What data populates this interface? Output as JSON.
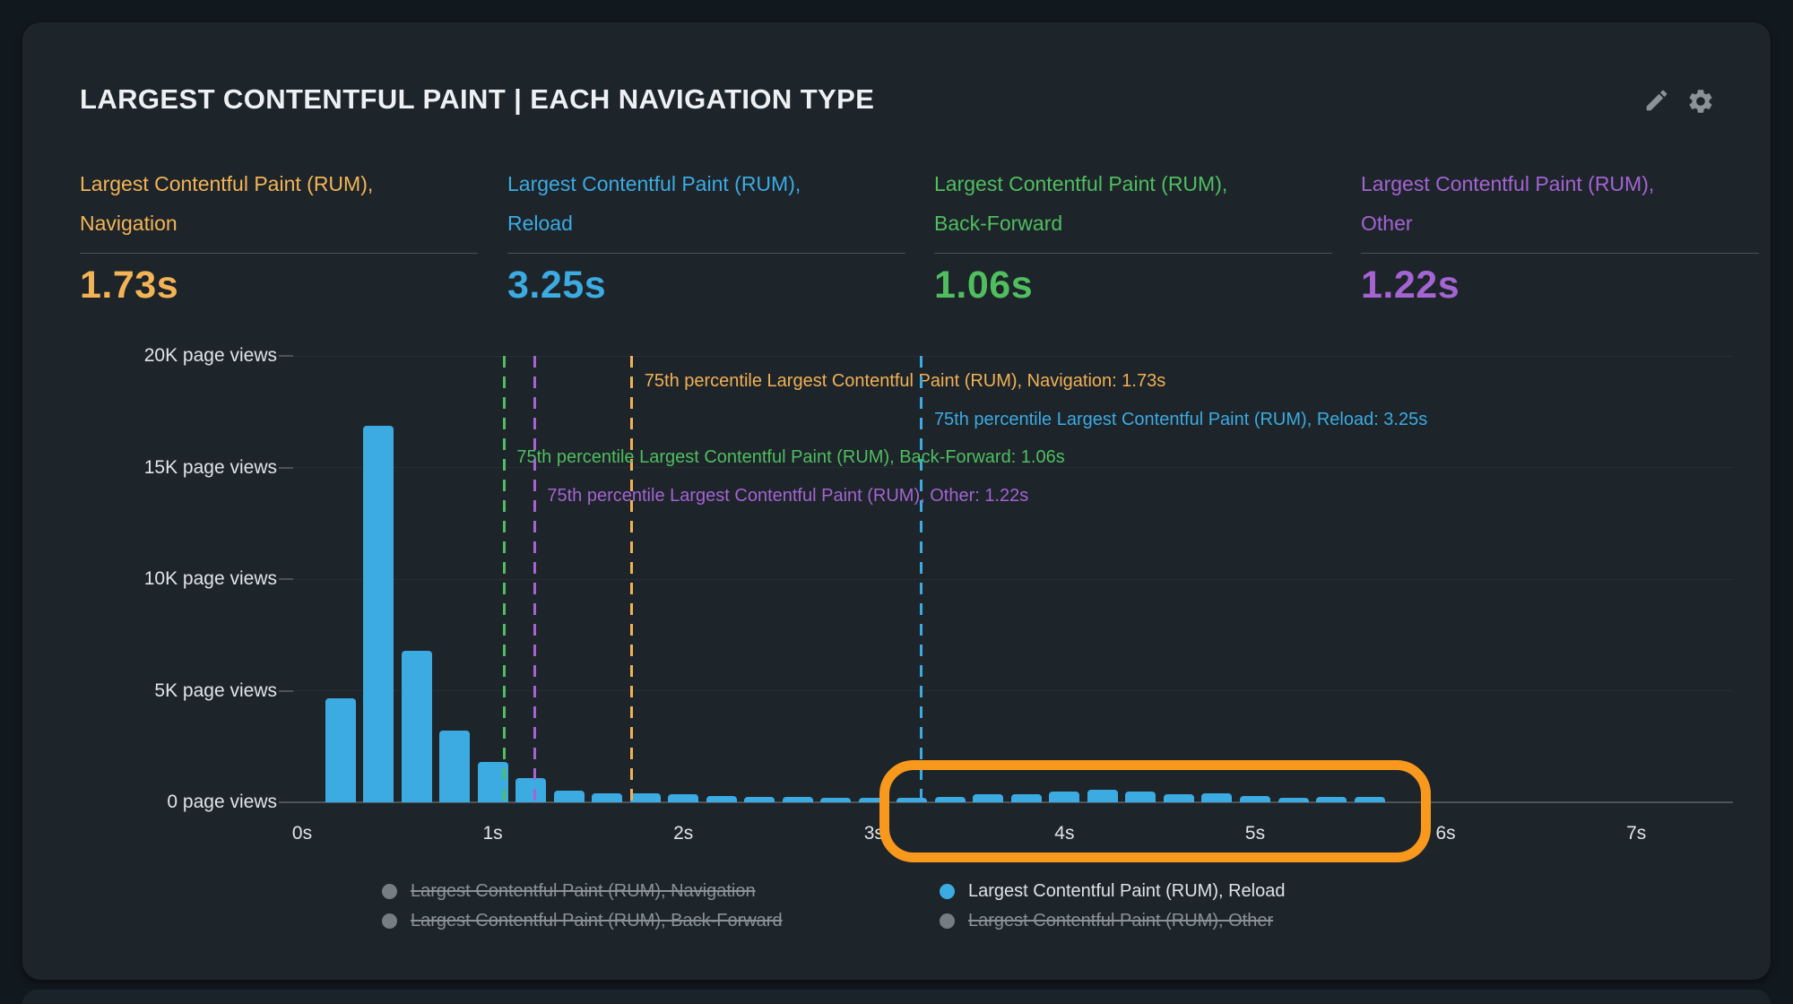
{
  "header": {
    "title": "LARGEST CONTENTFUL PAINT | EACH NAVIGATION TYPE",
    "icons": [
      {
        "name": "edit-pencil-icon",
        "color": "#8b9399"
      },
      {
        "name": "settings-gear-icon",
        "color": "#8b9399"
      }
    ]
  },
  "kpis": [
    {
      "label_line1": "Largest Contentful Paint (RUM),",
      "label_line2": "Navigation",
      "value": "1.73s",
      "color": "#f4b455"
    },
    {
      "label_line1": "Largest Contentful Paint (RUM),",
      "label_line2": "Reload",
      "value": "3.25s",
      "color": "#3cabe2"
    },
    {
      "label_line1": "Largest Contentful Paint (RUM),",
      "label_line2": "Back-Forward",
      "value": "1.06s",
      "color": "#50be5f"
    },
    {
      "label_line1": "Largest Contentful Paint (RUM),",
      "label_line2": "Other",
      "value": "1.22s",
      "color": "#a464d2"
    }
  ],
  "chart_data": {
    "type": "bar",
    "series_name": "Largest Contentful Paint (RUM), Reload",
    "bar_color": "#3cabe2",
    "bin_width_s": 0.2,
    "x": [
      0.2,
      0.4,
      0.6,
      0.8,
      1.0,
      1.2,
      1.4,
      1.6,
      1.8,
      2.0,
      2.2,
      2.4,
      2.6,
      2.8,
      3.0,
      3.2,
      3.4,
      3.6,
      3.8,
      4.0,
      4.2,
      4.4,
      4.6,
      4.8,
      5.0,
      5.2,
      5.4,
      5.6
    ],
    "values": [
      4660,
      16850,
      6800,
      3210,
      1810,
      1090,
      520,
      400,
      400,
      360,
      280,
      240,
      240,
      200,
      200,
      200,
      240,
      360,
      360,
      480,
      560,
      480,
      360,
      400,
      280,
      200,
      240,
      240
    ],
    "ylim": [
      0,
      20000
    ],
    "xlim_s": [
      0,
      7.5
    ],
    "y_ticks": [
      {
        "label": "20K page views",
        "value": 20000
      },
      {
        "label": "15K page views",
        "value": 15000
      },
      {
        "label": "10K page views",
        "value": 10000
      },
      {
        "label": "5K page views",
        "value": 5000
      },
      {
        "label": "0 page views",
        "value": 0
      }
    ],
    "x_ticks": [
      {
        "label": "0s",
        "value": 0
      },
      {
        "label": "1s",
        "value": 1
      },
      {
        "label": "2s",
        "value": 2
      },
      {
        "label": "3s",
        "value": 3
      },
      {
        "label": "4s",
        "value": 4
      },
      {
        "label": "5s",
        "value": 5
      },
      {
        "label": "6s",
        "value": 6
      },
      {
        "label": "7s",
        "value": 7
      }
    ],
    "percentile_markers": [
      {
        "name": "navigation",
        "value_s": 1.73,
        "color": "#f2b155",
        "annotation": "75th percentile Largest Contentful Paint (RUM), Navigation: 1.73s"
      },
      {
        "name": "reload",
        "value_s": 3.25,
        "color": "#3cabe2",
        "annotation": "75th percentile Largest Contentful Paint (RUM), Reload: 3.25s"
      },
      {
        "name": "back-forward",
        "value_s": 1.06,
        "color": "#50be5f",
        "annotation": "75th percentile Largest Contentful Paint (RUM), Back-Forward: 1.06s"
      },
      {
        "name": "other",
        "value_s": 1.22,
        "color": "#a464d2",
        "annotation": "75th percentile Largest Contentful Paint (RUM), Other: 1.22s"
      }
    ],
    "highlight_region": {
      "from_s": 3.08,
      "to_s": 5.87,
      "color": "#f8991d"
    },
    "grid": true,
    "legend_position": "bottom"
  },
  "legend": [
    {
      "label": "Largest Contentful Paint (RUM), Navigation",
      "active": false,
      "dot_color": "#767e84",
      "active_dot_color": "#3cabe2"
    },
    {
      "label": "Largest Contentful Paint (RUM), Reload",
      "active": true,
      "dot_color": "#767e84",
      "active_dot_color": "#3cabe2"
    },
    {
      "label": "Largest Contentful Paint (RUM), Back-Forward",
      "active": false,
      "dot_color": "#767e84",
      "active_dot_color": "#3cabe2"
    },
    {
      "label": "Largest Contentful Paint (RUM), Other",
      "active": false,
      "dot_color": "#767e84",
      "active_dot_color": "#3cabe2"
    }
  ]
}
